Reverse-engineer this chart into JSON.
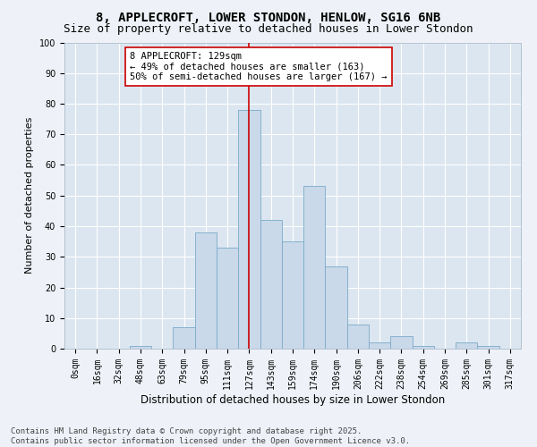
{
  "title1": "8, APPLECROFT, LOWER STONDON, HENLOW, SG16 6NB",
  "title2": "Size of property relative to detached houses in Lower Stondon",
  "xlabel": "Distribution of detached houses by size in Lower Stondon",
  "ylabel": "Number of detached properties",
  "bar_labels": [
    "0sqm",
    "16sqm",
    "32sqm",
    "48sqm",
    "63sqm",
    "79sqm",
    "95sqm",
    "111sqm",
    "127sqm",
    "143sqm",
    "159sqm",
    "174sqm",
    "190sqm",
    "206sqm",
    "222sqm",
    "238sqm",
    "254sqm",
    "269sqm",
    "285sqm",
    "301sqm",
    "317sqm"
  ],
  "bar_values": [
    0,
    0,
    0,
    1,
    0,
    7,
    38,
    33,
    78,
    42,
    35,
    53,
    27,
    8,
    2,
    4,
    1,
    0,
    2,
    1,
    0
  ],
  "bar_color": "#c9d9ea",
  "bar_edge_color": "#7aaac8",
  "vline_x": 8,
  "vline_color": "#cc0000",
  "annotation_text": "8 APPLECROFT: 129sqm\n← 49% of detached houses are smaller (163)\n50% of semi-detached houses are larger (167) →",
  "annotation_box_color": "#ffffff",
  "annotation_box_edge": "#cc0000",
  "ylim": [
    0,
    100
  ],
  "yticks": [
    0,
    10,
    20,
    30,
    40,
    50,
    60,
    70,
    80,
    90,
    100
  ],
  "bg_color": "#dce6f0",
  "grid_color": "#ffffff",
  "fig_bg_color": "#eef2f8",
  "footer": "Contains HM Land Registry data © Crown copyright and database right 2025.\nContains public sector information licensed under the Open Government Licence v3.0.",
  "title1_fontsize": 10,
  "title2_fontsize": 9,
  "xlabel_fontsize": 8.5,
  "ylabel_fontsize": 8,
  "tick_fontsize": 7,
  "annotation_fontsize": 7.5,
  "footer_fontsize": 6.5
}
